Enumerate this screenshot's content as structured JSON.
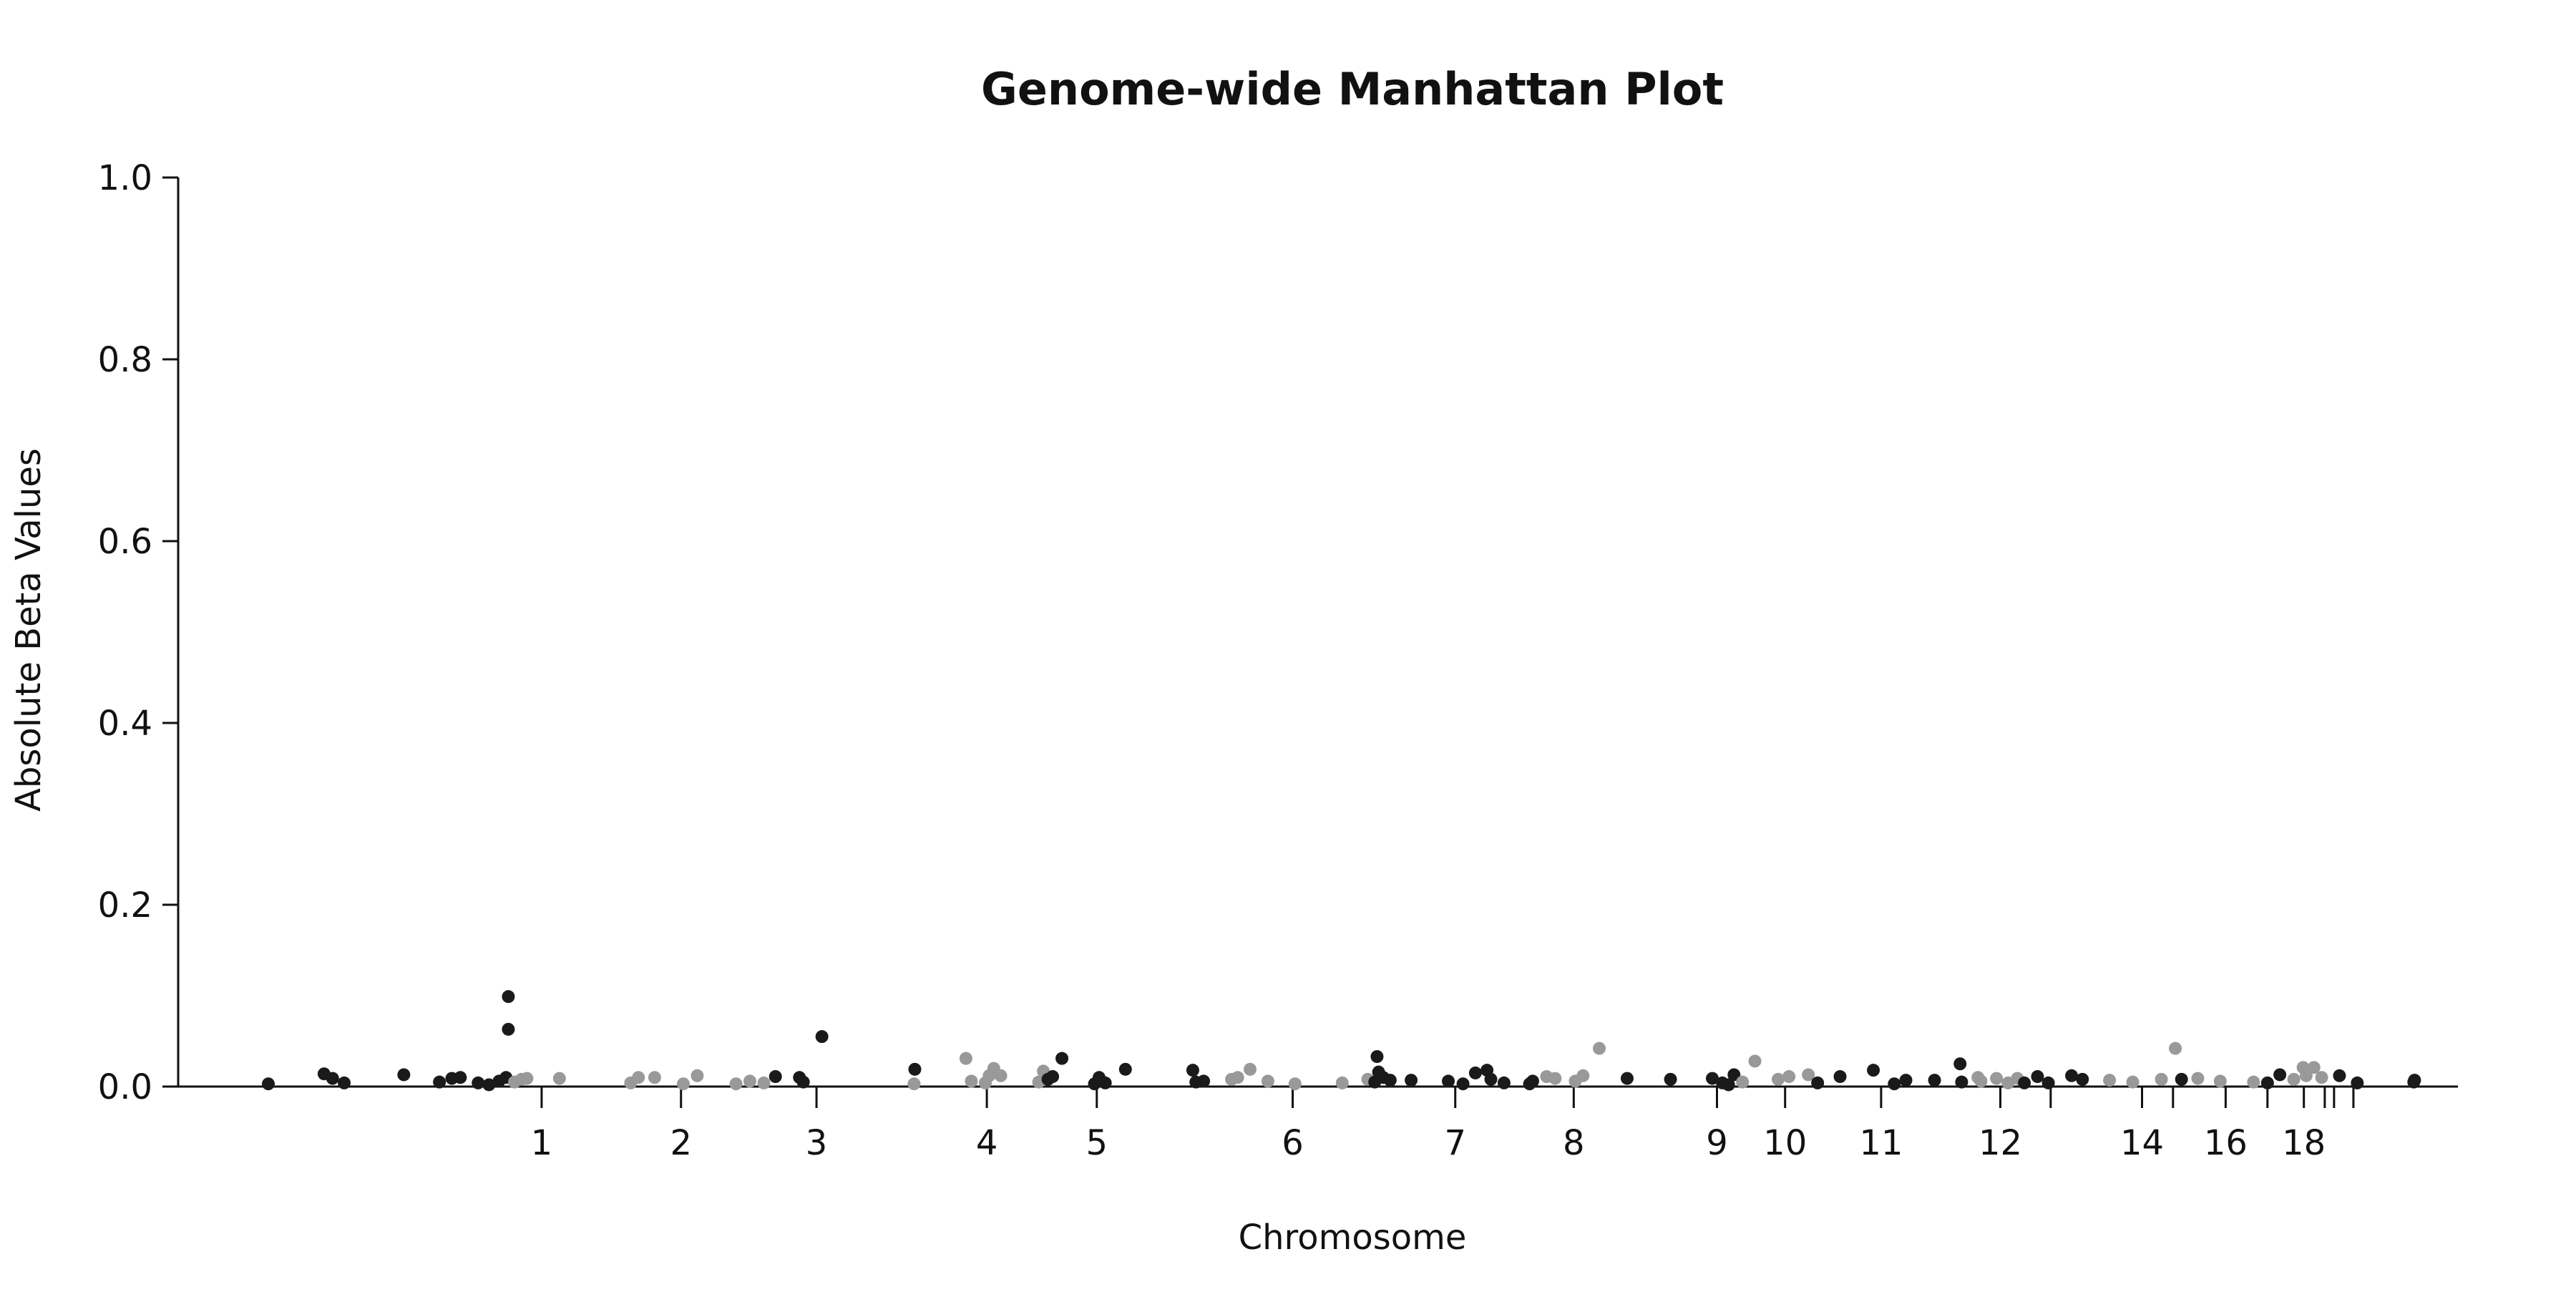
{
  "chart_data": {
    "type": "scatter",
    "title": "Genome-wide Manhattan Plot",
    "xlabel": "Chromosome",
    "ylabel": "Absolute Beta Values",
    "ylim": [
      0,
      1.0
    ],
    "y_ticks": [
      "0.0",
      "0.2",
      "0.4",
      "0.6",
      "0.8",
      "1.0"
    ],
    "x_ticks": [
      {
        "pos": 1215,
        "label": "1"
      },
      {
        "pos": 1395,
        "label": "2"
      },
      {
        "pos": 1570,
        "label": "3"
      },
      {
        "pos": 1790,
        "label": "4"
      },
      {
        "pos": 1932,
        "label": "5"
      },
      {
        "pos": 2185,
        "label": "6"
      },
      {
        "pos": 2395,
        "label": "7"
      },
      {
        "pos": 2548,
        "label": "8"
      },
      {
        "pos": 2733,
        "label": "9"
      },
      {
        "pos": 2821,
        "label": "10"
      },
      {
        "pos": 2945,
        "label": "11"
      },
      {
        "pos": 3099,
        "label": "12"
      },
      {
        "pos": 3164,
        "label": ""
      },
      {
        "pos": 3282,
        "label": "14"
      },
      {
        "pos": 3322,
        "label": ""
      },
      {
        "pos": 3390,
        "label": "16"
      },
      {
        "pos": 3444,
        "label": ""
      },
      {
        "pos": 3491,
        "label": "18"
      },
      {
        "pos": 3518,
        "label": ""
      },
      {
        "pos": 3530,
        "label": ""
      },
      {
        "pos": 3555,
        "label": ""
      }
    ],
    "xlim": [
      850,
      3690
    ],
    "grid": false,
    "colors": {
      "dark": "#1a1a1a",
      "light": "#999999"
    },
    "points": [
      {
        "x": 862,
        "y": 0.003,
        "c": "dark"
      },
      {
        "x": 934,
        "y": 0.014,
        "c": "dark"
      },
      {
        "x": 945,
        "y": 0.009,
        "c": "dark"
      },
      {
        "x": 960,
        "y": 0.004,
        "c": "dark"
      },
      {
        "x": 1037,
        "y": 0.013,
        "c": "dark"
      },
      {
        "x": 1083,
        "y": 0.005,
        "c": "dark"
      },
      {
        "x": 1099,
        "y": 0.009,
        "c": "dark"
      },
      {
        "x": 1110,
        "y": 0.01,
        "c": "dark"
      },
      {
        "x": 1133,
        "y": 0.004,
        "c": "dark"
      },
      {
        "x": 1147,
        "y": 0.002,
        "c": "dark"
      },
      {
        "x": 1160,
        "y": 0.006,
        "c": "dark"
      },
      {
        "x": 1169,
        "y": 0.01,
        "c": "dark"
      },
      {
        "x": 1172,
        "y": 0.099,
        "c": "dark"
      },
      {
        "x": 1172,
        "y": 0.063,
        "c": "dark"
      },
      {
        "x": 1180,
        "y": 0.005,
        "c": "light"
      },
      {
        "x": 1189,
        "y": 0.008,
        "c": "light"
      },
      {
        "x": 1196,
        "y": 0.009,
        "c": "light"
      },
      {
        "x": 1238,
        "y": 0.009,
        "c": "light"
      },
      {
        "x": 1330,
        "y": 0.004,
        "c": "light"
      },
      {
        "x": 1340,
        "y": 0.01,
        "c": "light"
      },
      {
        "x": 1361,
        "y": 0.01,
        "c": "light"
      },
      {
        "x": 1398,
        "y": 0.003,
        "c": "light"
      },
      {
        "x": 1416,
        "y": 0.012,
        "c": "light"
      },
      {
        "x": 1466,
        "y": 0.003,
        "c": "light"
      },
      {
        "x": 1484,
        "y": 0.006,
        "c": "light"
      },
      {
        "x": 1502,
        "y": 0.004,
        "c": "light"
      },
      {
        "x": 1517,
        "y": 0.011,
        "c": "dark"
      },
      {
        "x": 1548,
        "y": 0.01,
        "c": "dark"
      },
      {
        "x": 1553,
        "y": 0.005,
        "c": "dark"
      },
      {
        "x": 1577,
        "y": 0.055,
        "c": "dark"
      },
      {
        "x": 1697,
        "y": 0.019,
        "c": "dark"
      },
      {
        "x": 1696,
        "y": 0.003,
        "c": "light"
      },
      {
        "x": 1763,
        "y": 0.031,
        "c": "light"
      },
      {
        "x": 1770,
        "y": 0.006,
        "c": "light"
      },
      {
        "x": 1788,
        "y": 0.004,
        "c": "light"
      },
      {
        "x": 1793,
        "y": 0.012,
        "c": "light"
      },
      {
        "x": 1799,
        "y": 0.02,
        "c": "light"
      },
      {
        "x": 1808,
        "y": 0.012,
        "c": "light"
      },
      {
        "x": 1857,
        "y": 0.005,
        "c": "light"
      },
      {
        "x": 1863,
        "y": 0.017,
        "c": "light"
      },
      {
        "x": 1869,
        "y": 0.008,
        "c": "dark"
      },
      {
        "x": 1875,
        "y": 0.011,
        "c": "dark"
      },
      {
        "x": 1887,
        "y": 0.031,
        "c": "dark"
      },
      {
        "x": 1929,
        "y": 0.003,
        "c": "dark"
      },
      {
        "x": 1935,
        "y": 0.01,
        "c": "dark"
      },
      {
        "x": 1943,
        "y": 0.004,
        "c": "dark"
      },
      {
        "x": 1969,
        "y": 0.019,
        "c": "dark"
      },
      {
        "x": 2056,
        "y": 0.018,
        "c": "dark"
      },
      {
        "x": 2060,
        "y": 0.005,
        "c": "dark"
      },
      {
        "x": 2070,
        "y": 0.006,
        "c": "dark"
      },
      {
        "x": 2106,
        "y": 0.008,
        "c": "light"
      },
      {
        "x": 2114,
        "y": 0.01,
        "c": "light"
      },
      {
        "x": 2130,
        "y": 0.019,
        "c": "light"
      },
      {
        "x": 2153,
        "y": 0.006,
        "c": "light"
      },
      {
        "x": 2188,
        "y": 0.003,
        "c": "light"
      },
      {
        "x": 2249,
        "y": 0.004,
        "c": "light"
      },
      {
        "x": 2282,
        "y": 0.008,
        "c": "light"
      },
      {
        "x": 2291,
        "y": 0.005,
        "c": "dark"
      },
      {
        "x": 2294,
        "y": 0.033,
        "c": "dark"
      },
      {
        "x": 2296,
        "y": 0.016,
        "c": "dark"
      },
      {
        "x": 2302,
        "y": 0.01,
        "c": "dark"
      },
      {
        "x": 2311,
        "y": 0.007,
        "c": "dark"
      },
      {
        "x": 2338,
        "y": 0.007,
        "c": "dark"
      },
      {
        "x": 2386,
        "y": 0.006,
        "c": "dark"
      },
      {
        "x": 2405,
        "y": 0.003,
        "c": "dark"
      },
      {
        "x": 2421,
        "y": 0.015,
        "c": "dark"
      },
      {
        "x": 2436,
        "y": 0.018,
        "c": "dark"
      },
      {
        "x": 2441,
        "y": 0.008,
        "c": "dark"
      },
      {
        "x": 2458,
        "y": 0.004,
        "c": "dark"
      },
      {
        "x": 2491,
        "y": 0.003,
        "c": "dark"
      },
      {
        "x": 2495,
        "y": 0.006,
        "c": "dark"
      },
      {
        "x": 2513,
        "y": 0.011,
        "c": "light"
      },
      {
        "x": 2524,
        "y": 0.009,
        "c": "light"
      },
      {
        "x": 2550,
        "y": 0.006,
        "c": "light"
      },
      {
        "x": 2560,
        "y": 0.012,
        "c": "light"
      },
      {
        "x": 2581,
        "y": 0.042,
        "c": "light"
      },
      {
        "x": 2617,
        "y": 0.009,
        "c": "dark"
      },
      {
        "x": 2673,
        "y": 0.008,
        "c": "dark"
      },
      {
        "x": 2727,
        "y": 0.009,
        "c": "dark"
      },
      {
        "x": 2740,
        "y": 0.004,
        "c": "dark"
      },
      {
        "x": 2748,
        "y": 0.002,
        "c": "dark"
      },
      {
        "x": 2755,
        "y": 0.013,
        "c": "dark"
      },
      {
        "x": 2766,
        "y": 0.005,
        "c": "light"
      },
      {
        "x": 2782,
        "y": 0.028,
        "c": "light"
      },
      {
        "x": 2812,
        "y": 0.008,
        "c": "light"
      },
      {
        "x": 2826,
        "y": 0.011,
        "c": "light"
      },
      {
        "x": 2851,
        "y": 0.013,
        "c": "light"
      },
      {
        "x": 2863,
        "y": 0.004,
        "c": "dark"
      },
      {
        "x": 2892,
        "y": 0.011,
        "c": "dark"
      },
      {
        "x": 2935,
        "y": 0.018,
        "c": "dark"
      },
      {
        "x": 2962,
        "y": 0.003,
        "c": "dark"
      },
      {
        "x": 2977,
        "y": 0.007,
        "c": "dark"
      },
      {
        "x": 3014,
        "y": 0.007,
        "c": "dark"
      },
      {
        "x": 3047,
        "y": 0.025,
        "c": "dark"
      },
      {
        "x": 3049,
        "y": 0.005,
        "c": "dark"
      },
      {
        "x": 3070,
        "y": 0.01,
        "c": "light"
      },
      {
        "x": 3074,
        "y": 0.006,
        "c": "light"
      },
      {
        "x": 3094,
        "y": 0.009,
        "c": "light"
      },
      {
        "x": 3109,
        "y": 0.004,
        "c": "light"
      },
      {
        "x": 3121,
        "y": 0.009,
        "c": "light"
      },
      {
        "x": 3130,
        "y": 0.004,
        "c": "dark"
      },
      {
        "x": 3147,
        "y": 0.011,
        "c": "dark"
      },
      {
        "x": 3161,
        "y": 0.004,
        "c": "dark"
      },
      {
        "x": 3191,
        "y": 0.012,
        "c": "dark"
      },
      {
        "x": 3205,
        "y": 0.008,
        "c": "dark"
      },
      {
        "x": 3240,
        "y": 0.007,
        "c": "light"
      },
      {
        "x": 3270,
        "y": 0.005,
        "c": "light"
      },
      {
        "x": 3307,
        "y": 0.008,
        "c": "light"
      },
      {
        "x": 3325,
        "y": 0.042,
        "c": "light"
      },
      {
        "x": 3333,
        "y": 0.008,
        "c": "dark"
      },
      {
        "x": 3354,
        "y": 0.009,
        "c": "light"
      },
      {
        "x": 3383,
        "y": 0.006,
        "c": "light"
      },
      {
        "x": 3426,
        "y": 0.005,
        "c": "light"
      },
      {
        "x": 3444,
        "y": 0.004,
        "c": "dark"
      },
      {
        "x": 3460,
        "y": 0.013,
        "c": "dark"
      },
      {
        "x": 3478,
        "y": 0.008,
        "c": "light"
      },
      {
        "x": 3490,
        "y": 0.021,
        "c": "light"
      },
      {
        "x": 3494,
        "y": 0.012,
        "c": "light"
      },
      {
        "x": 3504,
        "y": 0.021,
        "c": "light"
      },
      {
        "x": 3514,
        "y": 0.01,
        "c": "light"
      },
      {
        "x": 3537,
        "y": 0.012,
        "c": "dark"
      },
      {
        "x": 3560,
        "y": 0.004,
        "c": "dark"
      },
      {
        "x": 3633,
        "y": 0.005,
        "c": "dark"
      },
      {
        "x": 3634,
        "y": 0.007,
        "c": "dark"
      }
    ]
  }
}
